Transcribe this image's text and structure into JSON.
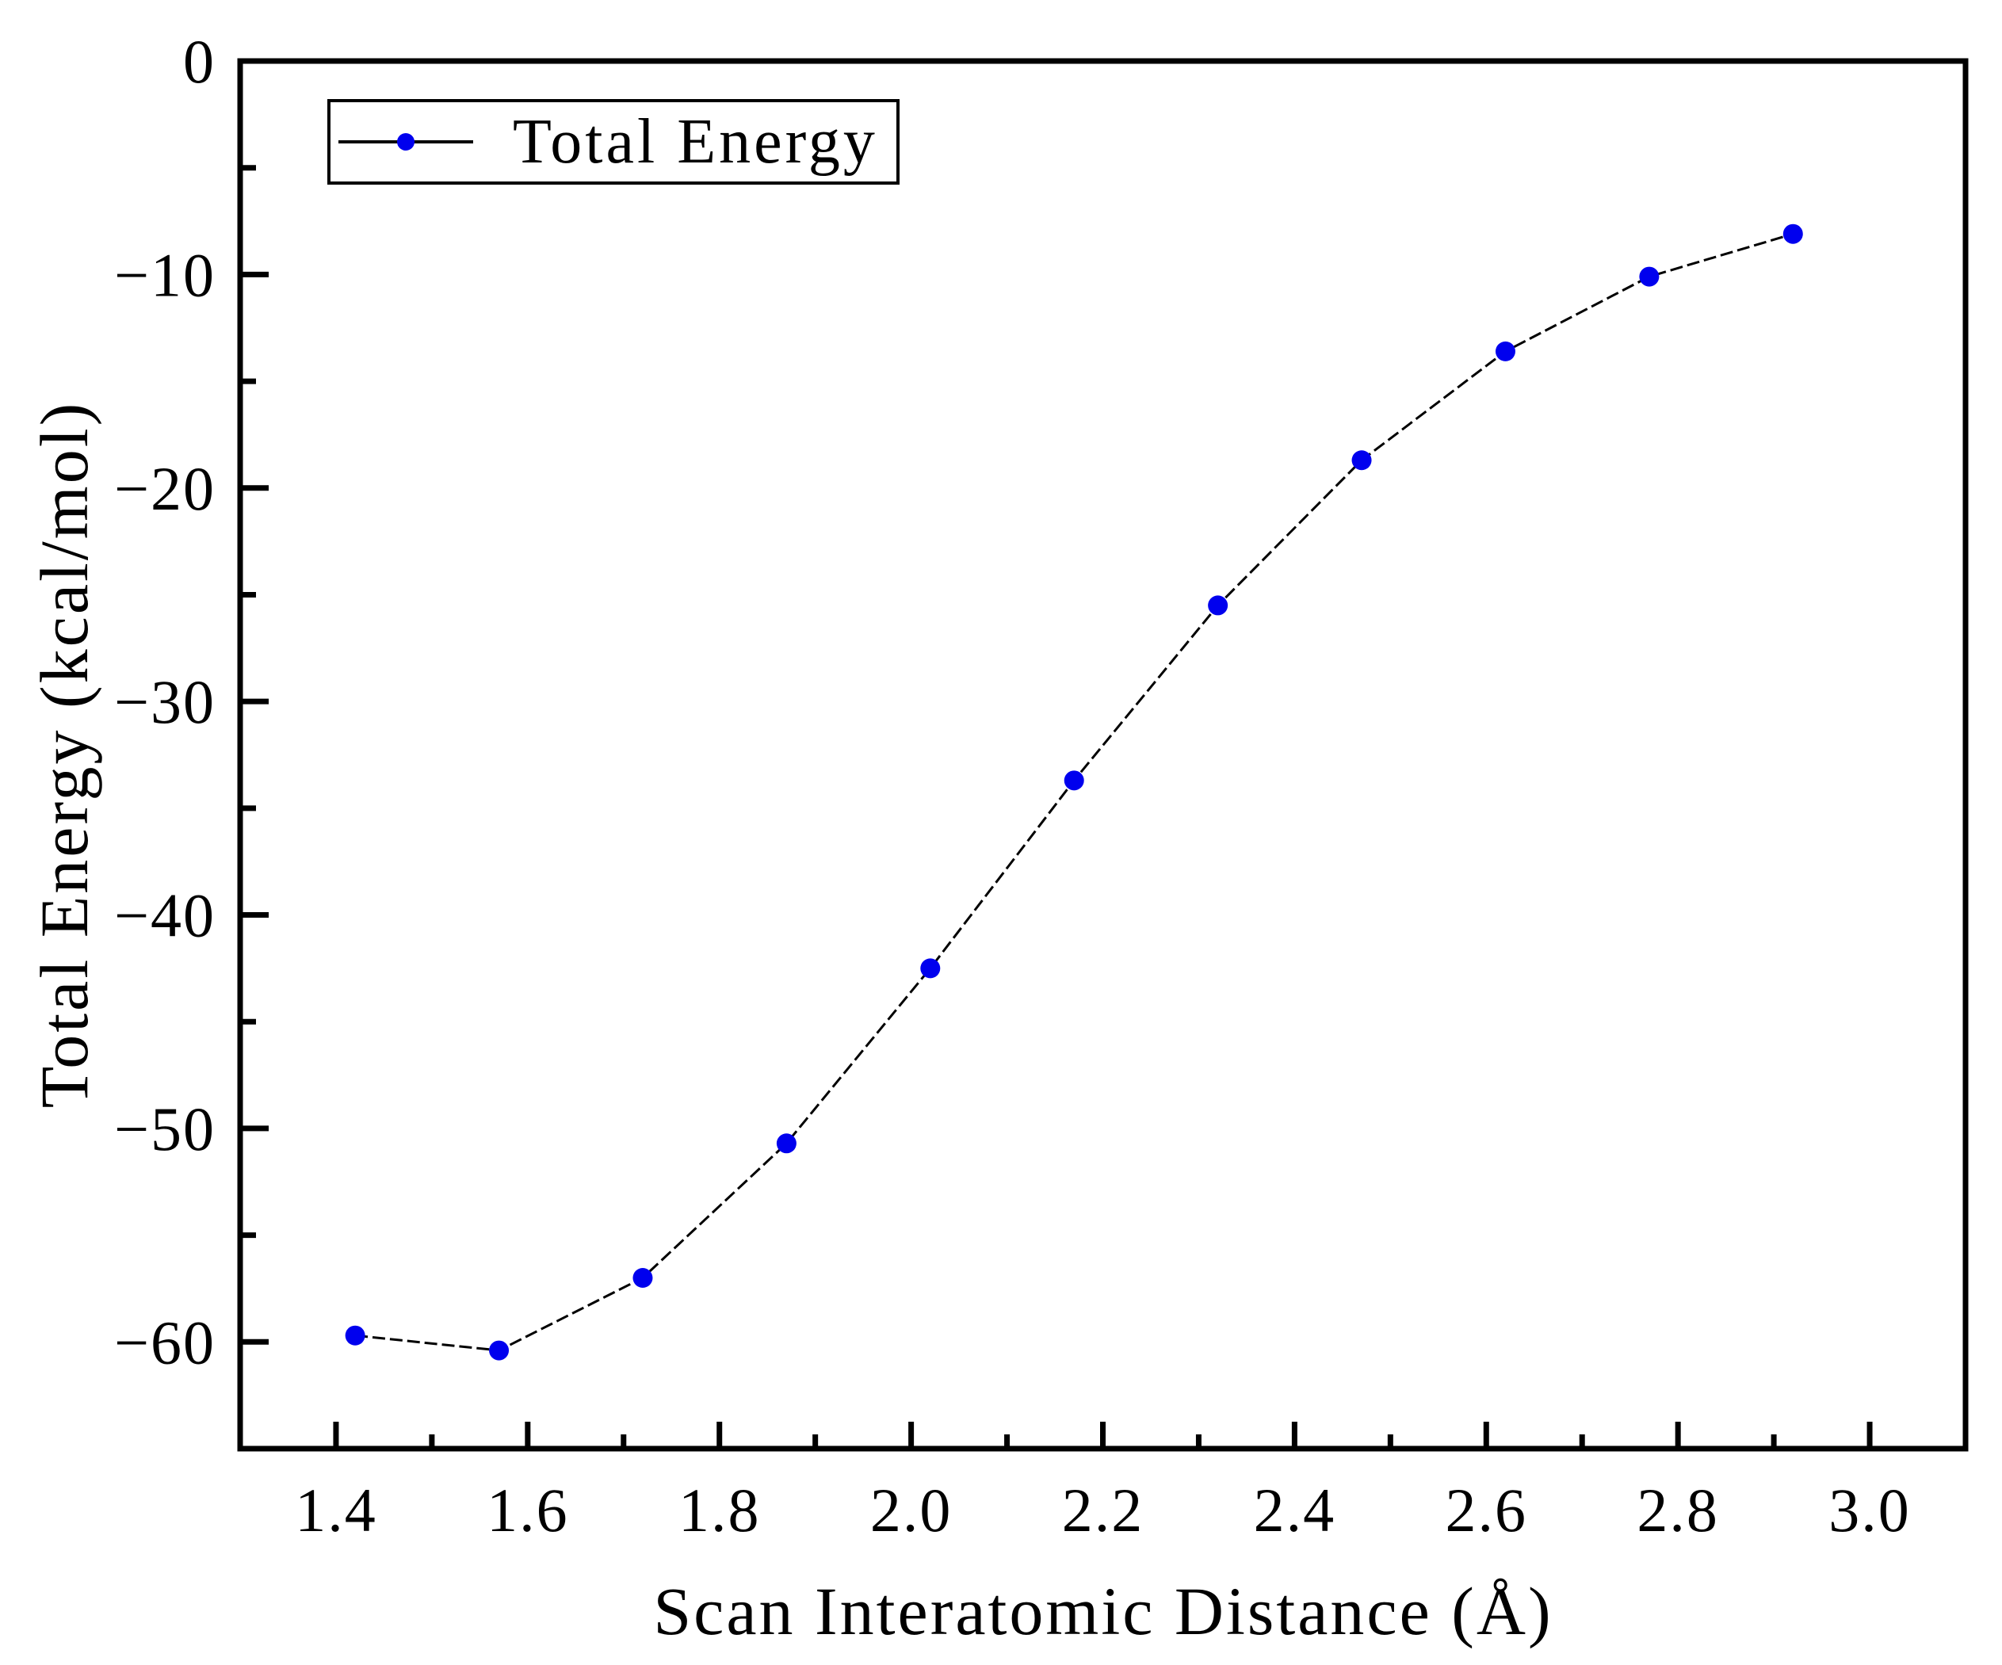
{
  "chart_data": {
    "type": "line",
    "xlabel": "Scan Interatomic Distance (Å)",
    "ylabel": "Total Energy (kcal/mol)",
    "xlim": [
      1.3,
      3.1
    ],
    "ylim": [
      -65,
      0
    ],
    "grid": false,
    "x_major_ticks": [
      1.4,
      1.6,
      1.8,
      2.0,
      2.2,
      2.4,
      2.6,
      2.8,
      3.0
    ],
    "x_minor_ticks": [
      1.5,
      1.7,
      1.9,
      2.1,
      2.3,
      2.5,
      2.7,
      2.9
    ],
    "y_major_ticks": [
      0,
      -10,
      -20,
      -30,
      -40,
      -50,
      -60
    ],
    "y_minor_ticks": [
      -5,
      -15,
      -25,
      -35,
      -45,
      -55
    ],
    "x_tick_labels": [
      "1.4",
      "1.6",
      "1.8",
      "2.0",
      "2.2",
      "2.4",
      "2.6",
      "2.8",
      "3.0"
    ],
    "y_tick_labels": [
      "0",
      "−10",
      "−20",
      "−30",
      "−40",
      "−50",
      "−60"
    ],
    "legend": {
      "label": "Total Energy",
      "position": "upper-left-inside"
    },
    "series": [
      {
        "name": "Total Energy",
        "x": [
          1.42,
          1.57,
          1.72,
          1.87,
          2.02,
          2.17,
          2.32,
          2.47,
          2.62,
          2.77,
          2.92
        ],
        "y": [
          -59.7,
          -60.4,
          -57.0,
          -50.7,
          -42.5,
          -33.7,
          -25.5,
          -18.7,
          -13.6,
          -10.1,
          -8.1
        ],
        "line_color": "#000000",
        "marker_color": "#0000EE",
        "marker": "circle"
      }
    ]
  }
}
